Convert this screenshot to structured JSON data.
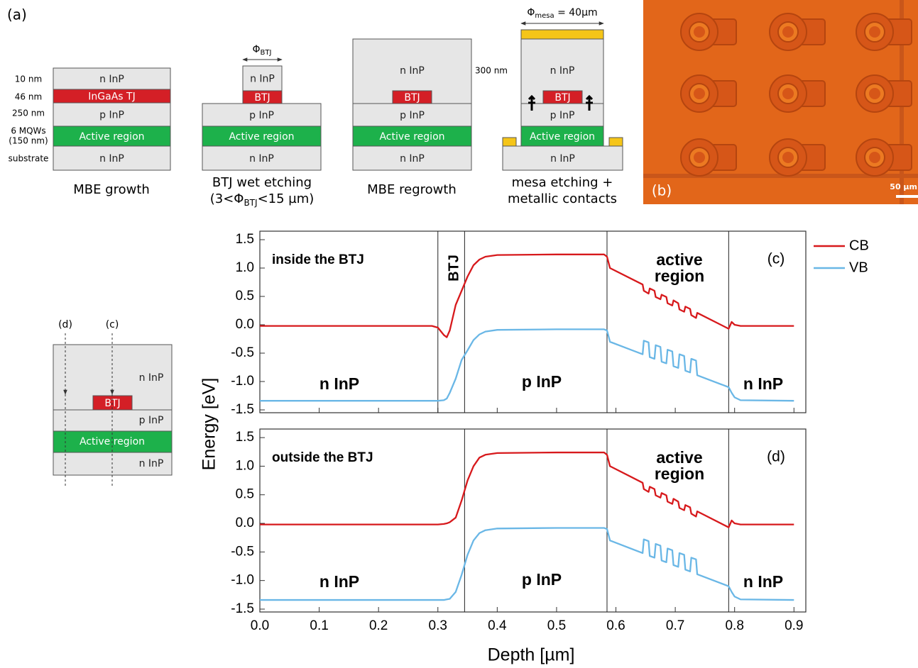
{
  "panel_a": {
    "label": "(a)",
    "thickness_labels": [
      "10 nm",
      "46 nm",
      "250 nm",
      "6 MQWs",
      "(150 nm)",
      "substrate"
    ],
    "steps": [
      {
        "layers": [
          "n InP",
          "InGaAs TJ",
          "p InP",
          "Active region",
          "n InP"
        ],
        "caption": [
          "MBE growth"
        ]
      },
      {
        "layers": [
          "n InP",
          "BTJ",
          "p InP",
          "Active region",
          "n InP"
        ],
        "dimension": [
          "Φ",
          "BTJ"
        ],
        "caption": [
          "BTJ wet etching",
          "(3<Φ",
          "BTJ",
          "<15 µm)"
        ]
      },
      {
        "layers": [
          "n InP",
          "BTJ",
          "p InP",
          "Active region",
          "n InP"
        ],
        "dimension": "300 nm",
        "caption": [
          "MBE regrowth"
        ]
      },
      {
        "layers": [
          "n InP",
          "BTJ",
          "p InP",
          "Active region",
          "n InP"
        ],
        "dimension": [
          "Φ",
          "mesa",
          " = 40µm"
        ],
        "caption": [
          "mesa etching +",
          "metallic contacts"
        ]
      }
    ]
  },
  "panel_b": {
    "label": "(b)",
    "scale_bar": "50 µm"
  },
  "inset": {
    "probes": [
      "(d)",
      "(c)"
    ],
    "layers": [
      "n InP",
      "BTJ",
      "p InP",
      "Active region",
      "n InP"
    ]
  },
  "shared_axes": {
    "ylabel": "Energy [eV]",
    "xlabel": "Depth [µm]"
  },
  "chart_data": [
    {
      "type": "line",
      "panel_label": "(c)",
      "note": "inside the BTJ",
      "btj_label": "BTJ",
      "active_label": [
        "active",
        "region"
      ],
      "layer_labels": [
        "n InP",
        "p InP",
        "n InP"
      ],
      "x": [
        0,
        0.29,
        0.3,
        0.31,
        0.315,
        0.32,
        0.33,
        0.34,
        0.35,
        0.36,
        0.37,
        0.38,
        0.4,
        0.5,
        0.58,
        0.585,
        0.59,
        0.645,
        0.647,
        0.655,
        0.657,
        0.665,
        0.667,
        0.675,
        0.677,
        0.685,
        0.687,
        0.695,
        0.697,
        0.705,
        0.707,
        0.715,
        0.717,
        0.725,
        0.727,
        0.735,
        0.737,
        0.79,
        0.795,
        0.8,
        0.81,
        0.9
      ],
      "series": [
        {
          "name": "CB",
          "color": "#d7191c",
          "values": [
            -0.02,
            -0.02,
            -0.05,
            -0.18,
            -0.22,
            -0.1,
            0.35,
            0.6,
            0.85,
            1.05,
            1.15,
            1.2,
            1.23,
            1.24,
            1.24,
            1.2,
            1.0,
            0.71,
            0.6,
            0.55,
            0.64,
            0.6,
            0.49,
            0.45,
            0.53,
            0.49,
            0.38,
            0.34,
            0.43,
            0.38,
            0.27,
            0.23,
            0.32,
            0.28,
            0.17,
            0.12,
            0.21,
            -0.07,
            0.05,
            0.0,
            -0.02,
            -0.02
          ]
        },
        {
          "name": "VB",
          "color": "#6ab7e6",
          "values": [
            -1.34,
            -1.34,
            -1.34,
            -1.33,
            -1.3,
            -1.2,
            -0.95,
            -0.62,
            -0.45,
            -0.27,
            -0.17,
            -0.12,
            -0.09,
            -0.08,
            -0.08,
            -0.1,
            -0.3,
            -0.52,
            -0.28,
            -0.31,
            -0.57,
            -0.6,
            -0.36,
            -0.39,
            -0.65,
            -0.68,
            -0.44,
            -0.47,
            -0.73,
            -0.76,
            -0.52,
            -0.55,
            -0.81,
            -0.84,
            -0.6,
            -0.63,
            -0.89,
            -1.1,
            -1.2,
            -1.28,
            -1.33,
            -1.34
          ]
        }
      ],
      "boundaries": [
        0.3,
        0.345,
        0.585,
        0.79
      ],
      "xlim": [
        0,
        0.92
      ],
      "xticks": [
        0,
        0.1,
        0.2,
        0.3,
        0.4,
        0.5,
        0.6,
        0.7,
        0.8,
        0.9
      ],
      "xtick_labels": false,
      "ylim": [
        -1.55,
        1.65
      ],
      "yticks": [
        -1.5,
        {
          "value": -1,
          "label": "-1.0"
        },
        -0.5,
        {
          "value": 0,
          "label": "0.0"
        },
        0.5,
        {
          "value": 1,
          "label": "1.0"
        },
        1.5
      ]
    },
    {
      "type": "line",
      "panel_label": "(d)",
      "note": "outside the BTJ",
      "active_label": [
        "active",
        "region"
      ],
      "layer_labels": [
        "n InP",
        "p InP",
        "n InP"
      ],
      "x": [
        0,
        0.29,
        0.3,
        0.31,
        0.315,
        0.32,
        0.33,
        0.34,
        0.35,
        0.36,
        0.37,
        0.38,
        0.4,
        0.5,
        0.58,
        0.585,
        0.59,
        0.645,
        0.647,
        0.655,
        0.657,
        0.665,
        0.667,
        0.675,
        0.677,
        0.685,
        0.687,
        0.695,
        0.697,
        0.705,
        0.707,
        0.715,
        0.717,
        0.725,
        0.727,
        0.735,
        0.737,
        0.79,
        0.795,
        0.8,
        0.81,
        0.9
      ],
      "series": [
        {
          "color": "#d7191c",
          "values": [
            -0.02,
            -0.02,
            -0.02,
            -0.01,
            0.0,
            0.02,
            0.1,
            0.4,
            0.75,
            1.0,
            1.15,
            1.2,
            1.23,
            1.24,
            1.24,
            1.2,
            1.0,
            0.71,
            0.6,
            0.55,
            0.64,
            0.6,
            0.49,
            0.45,
            0.53,
            0.49,
            0.38,
            0.34,
            0.43,
            0.38,
            0.27,
            0.23,
            0.32,
            0.28,
            0.17,
            0.12,
            0.21,
            -0.07,
            0.05,
            0.0,
            -0.02,
            -0.02
          ]
        },
        {
          "color": "#6ab7e6",
          "values": [
            -1.34,
            -1.34,
            -1.34,
            -1.34,
            -1.33,
            -1.32,
            -1.2,
            -0.9,
            -0.55,
            -0.3,
            -0.17,
            -0.12,
            -0.09,
            -0.08,
            -0.08,
            -0.1,
            -0.3,
            -0.52,
            -0.28,
            -0.31,
            -0.57,
            -0.6,
            -0.36,
            -0.39,
            -0.65,
            -0.68,
            -0.44,
            -0.47,
            -0.73,
            -0.76,
            -0.52,
            -0.55,
            -0.81,
            -0.84,
            -0.6,
            -0.63,
            -0.89,
            -1.1,
            -1.2,
            -1.28,
            -1.33,
            -1.34
          ]
        }
      ],
      "boundaries": [
        0.345,
        0.585,
        0.79
      ],
      "xlim": [
        0,
        0.92
      ],
      "xticks": [
        {
          "value": 0,
          "label": "0.0"
        },
        0.1,
        0.2,
        0.3,
        0.4,
        0.5,
        0.6,
        0.7,
        0.8,
        0.9
      ],
      "xtick_labels": true,
      "ylim": [
        -1.55,
        1.65
      ],
      "yticks": [
        -1.5,
        {
          "value": -1,
          "label": "-1.0"
        },
        -0.5,
        {
          "value": 0,
          "label": "0.0"
        },
        0.5,
        {
          "value": 1,
          "label": "1.0"
        },
        1.5
      ]
    }
  ]
}
